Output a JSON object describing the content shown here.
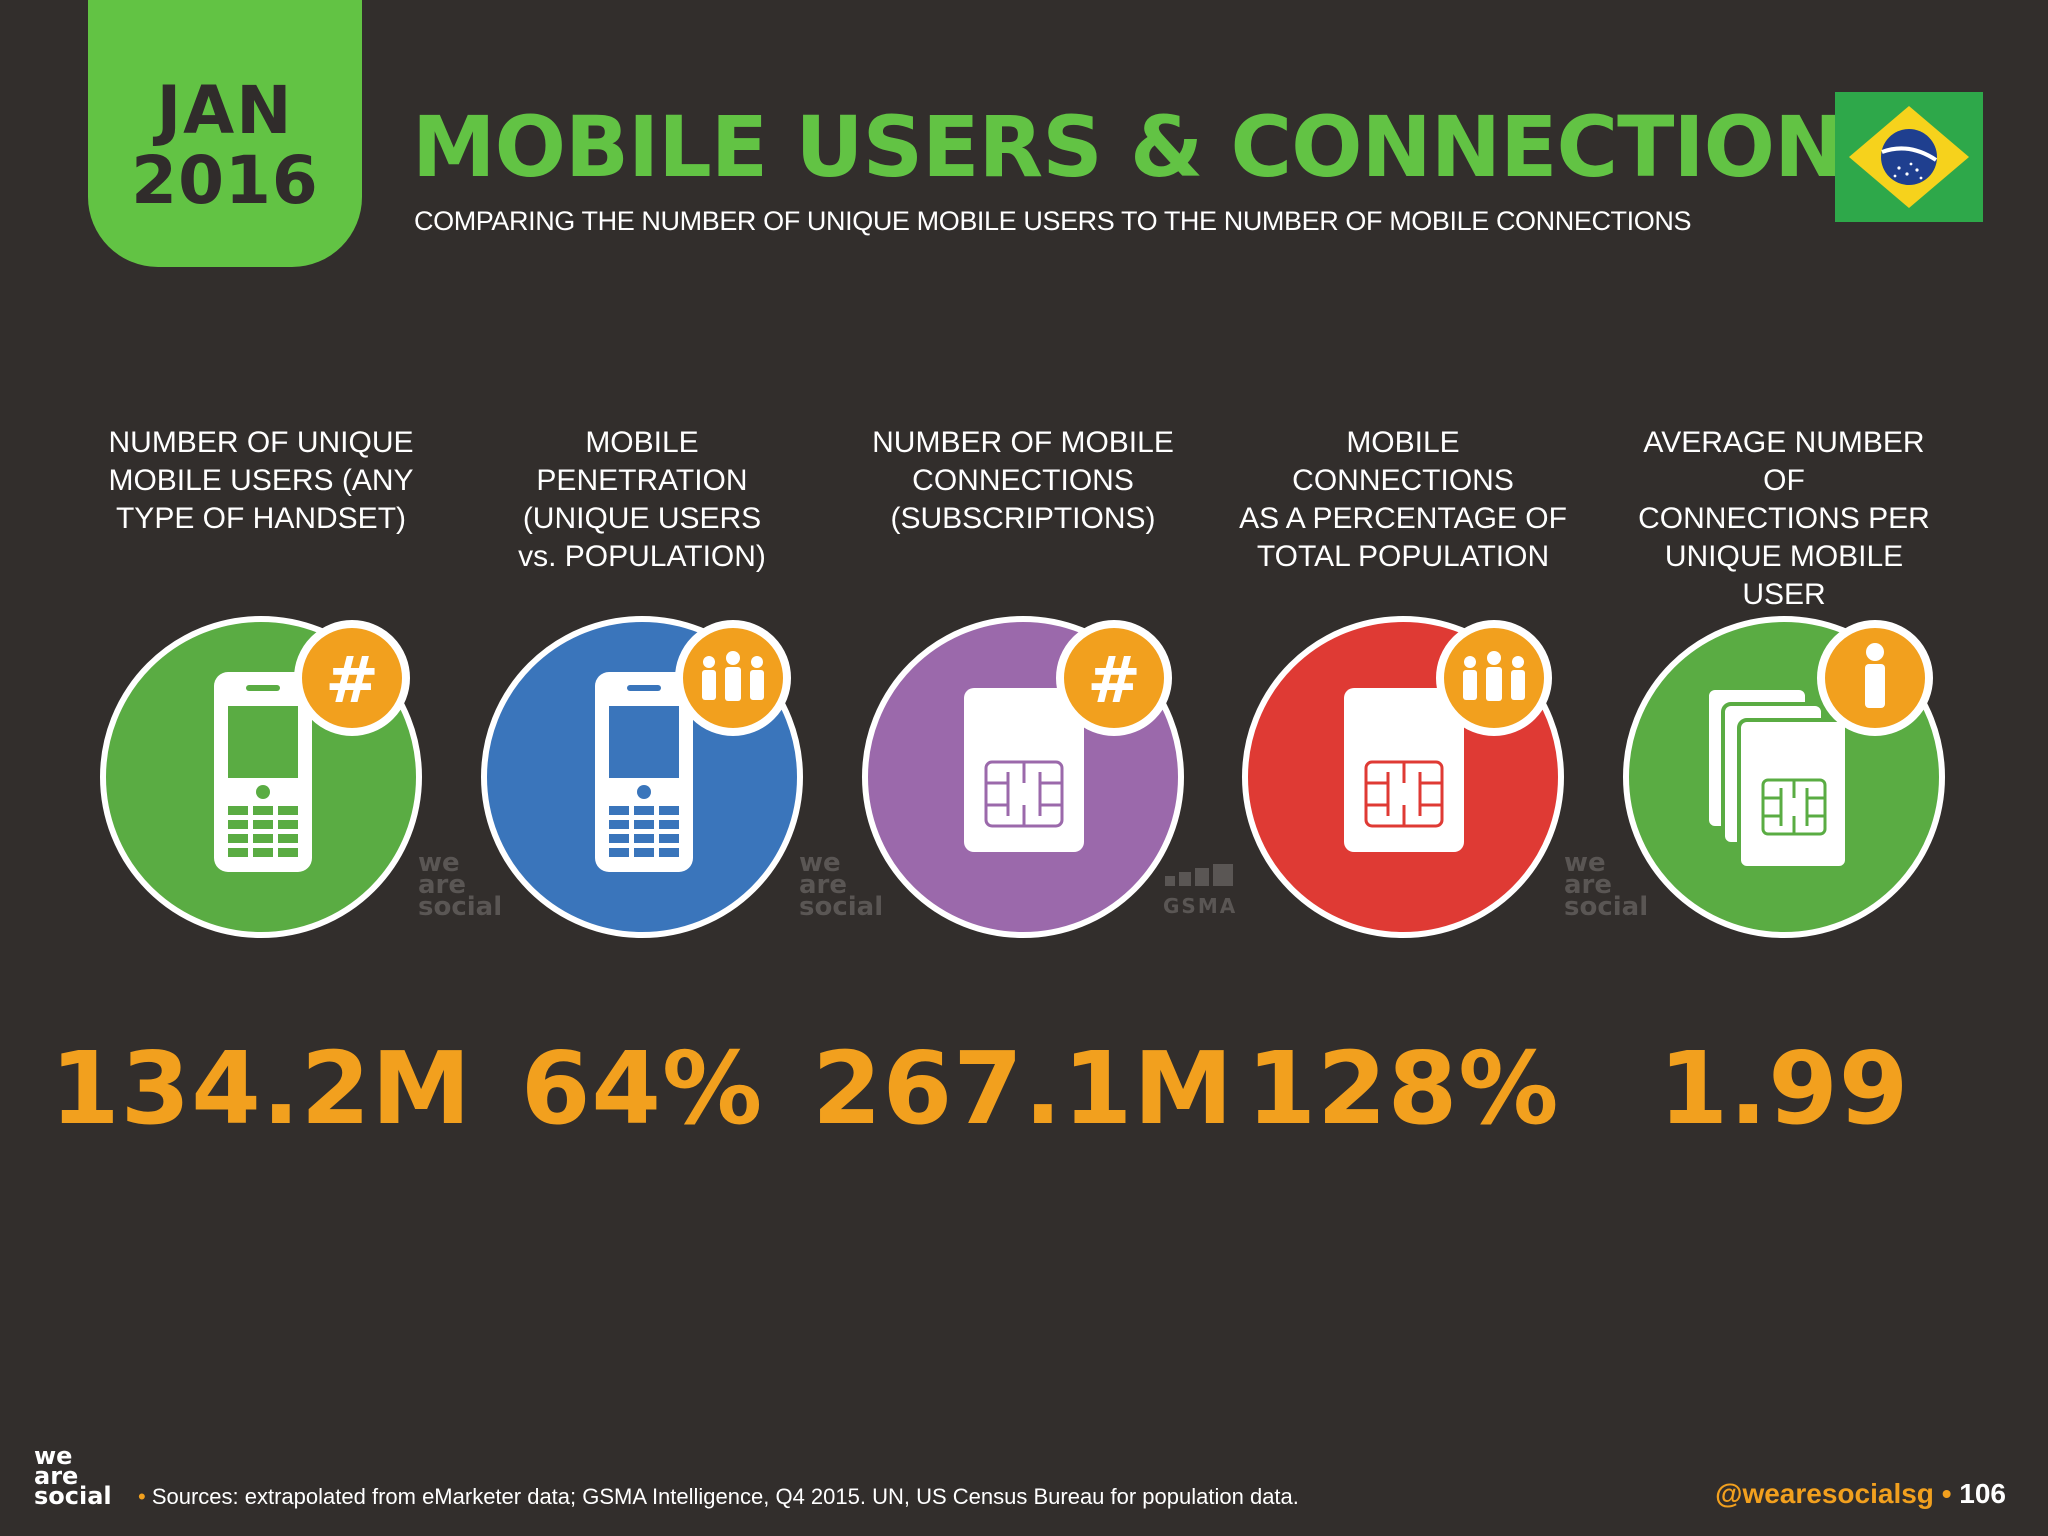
{
  "header": {
    "month": "JAN",
    "year": "2016",
    "title": "MOBILE USERS & CONNECTIONS",
    "subtitle": "COMPARING THE NUMBER OF UNIQUE MOBILE USERS TO THE NUMBER OF MOBILE CONNECTIONS",
    "flag": "brazil-flag"
  },
  "stats": [
    {
      "label": "NUMBER OF UNIQUE\nMOBILE USERS (ANY\nTYPE OF HANDSET)",
      "value": "134.2M",
      "circle_color": "#5aac43",
      "icon": "phone-icon",
      "badge": "hash-icon"
    },
    {
      "label": "MOBILE PENETRATION\n(UNIQUE USERS\nvs. POPULATION)",
      "value": "64%",
      "circle_color": "#3a75bb",
      "icon": "phone-icon",
      "badge": "people-icon"
    },
    {
      "label": "NUMBER OF MOBILE\nCONNECTIONS\n(SUBSCRIPTIONS)",
      "value": "267.1M",
      "circle_color": "#9b69ab",
      "icon": "sim-card-icon",
      "badge": "hash-icon"
    },
    {
      "label": "MOBILE CONNECTIONS\nAS A PERCENTAGE OF\nTOTAL POPULATION",
      "value": "128%",
      "circle_color": "#df3a34",
      "icon": "sim-card-icon",
      "badge": "people-icon"
    },
    {
      "label": "AVERAGE NUMBER OF\nCONNECTIONS PER\nUNIQUE MOBILE USER",
      "value": "1.99",
      "circle_color": "#5aac43",
      "icon": "sim-stack-icon",
      "badge": "person-icon"
    }
  ],
  "watermarks": {
    "we_are_social": "we are social",
    "gsma": "GSMA"
  },
  "footer": {
    "logo": "we are social",
    "bullet": "•",
    "sources": "Sources: extrapolated from eMarketer data; GSMA Intelligence, Q4 2015. UN, US Census Bureau for population data.",
    "handle": "@wearesocialsg",
    "page": "106"
  },
  "colors": {
    "background": "#322e2c",
    "accent_green": "#62c344",
    "accent_orange": "#f2a01e"
  }
}
